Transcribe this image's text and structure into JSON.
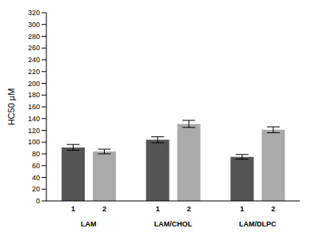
{
  "chart_data": {
    "type": "bar",
    "y_label": "HC50 µM",
    "categories": [
      "LAM",
      "LAM/CHOL",
      "LAM/DLPC"
    ],
    "series": [
      {
        "name": "1",
        "color": "#555555",
        "values": [
          91,
          104,
          75
        ],
        "errors": [
          5,
          5,
          4
        ]
      },
      {
        "name": "2",
        "color": "#aaaaaa",
        "values": [
          84,
          131,
          121
        ],
        "errors": [
          4,
          6,
          5
        ]
      }
    ],
    "ylim": [
      0,
      320
    ],
    "yticks": [
      0,
      20,
      40,
      60,
      80,
      100,
      120,
      140,
      160,
      180,
      200,
      220,
      240,
      260,
      280,
      300,
      320
    ],
    "grid": false,
    "stacked": false
  }
}
